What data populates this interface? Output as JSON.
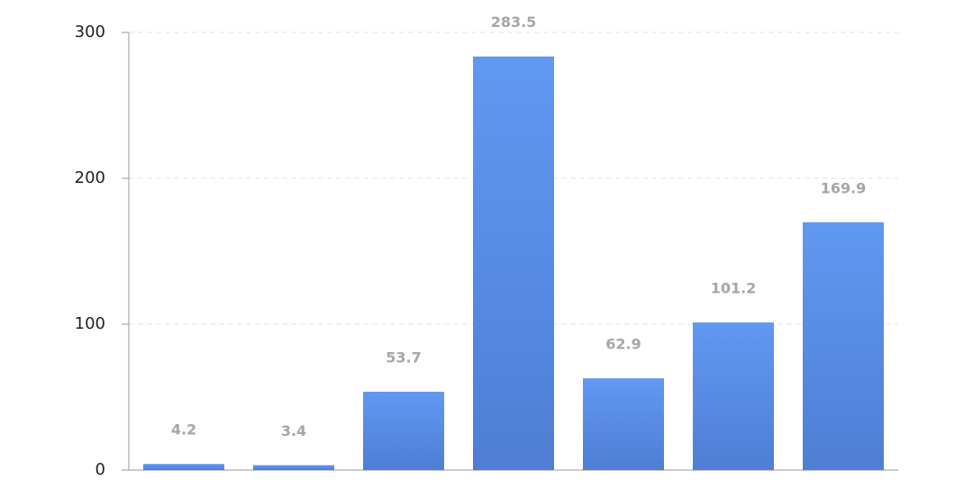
{
  "chart_data": {
    "type": "bar",
    "categories": [
      null,
      null,
      null,
      null,
      null,
      null,
      null
    ],
    "values": [
      4.2,
      3.4,
      53.7,
      283.5,
      62.9,
      101.2,
      169.9
    ],
    "color": "#5b8ee8",
    "ylim": [
      0,
      300
    ],
    "yticks": [
      0,
      100,
      200,
      300
    ],
    "grid": true
  }
}
